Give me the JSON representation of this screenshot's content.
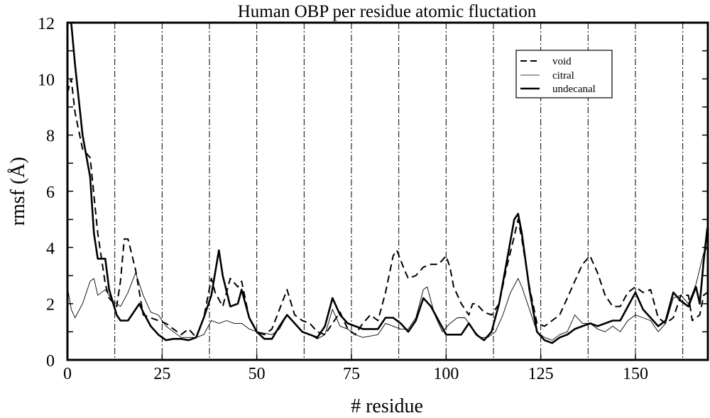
{
  "chart_data": {
    "type": "line",
    "title": "Human OBP per residue atomic fluctation",
    "xlabel": "# residue",
    "ylabel": "rmsf (Å)",
    "xlim": [
      0,
      169
    ],
    "ylim": [
      0,
      12
    ],
    "xticks": [
      "0",
      "25",
      "50",
      "75",
      "100",
      "125",
      "150"
    ],
    "yticks": [
      "0",
      "2",
      "4",
      "6",
      "8",
      "10",
      "12"
    ],
    "grid": "vertical dash-dot lines every 12.5 residues",
    "legend_position": "top-right",
    "series": [
      {
        "name": "void",
        "style": "dashed",
        "points": [
          [
            0,
            9.5
          ],
          [
            1,
            10.0
          ],
          [
            2,
            8.8
          ],
          [
            4,
            7.5
          ],
          [
            6,
            7.2
          ],
          [
            8,
            4.5
          ],
          [
            10,
            2.7
          ],
          [
            11,
            2.2
          ],
          [
            13,
            1.9
          ],
          [
            14,
            2.8
          ],
          [
            15,
            4.3
          ],
          [
            16,
            4.3
          ],
          [
            18,
            3.2
          ],
          [
            20,
            1.6
          ],
          [
            22,
            1.5
          ],
          [
            24,
            1.4
          ],
          [
            26,
            1.3
          ],
          [
            28,
            1.1
          ],
          [
            30,
            0.9
          ],
          [
            32,
            1.1
          ],
          [
            34,
            0.8
          ],
          [
            36,
            1.5
          ],
          [
            38,
            2.9
          ],
          [
            39,
            2.4
          ],
          [
            41,
            1.9
          ],
          [
            43,
            2.9
          ],
          [
            45,
            2.6
          ],
          [
            46,
            2.8
          ],
          [
            48,
            1.5
          ],
          [
            50,
            1.0
          ],
          [
            52,
            0.9
          ],
          [
            54,
            1.1
          ],
          [
            56,
            1.8
          ],
          [
            58,
            2.5
          ],
          [
            60,
            1.6
          ],
          [
            62,
            1.4
          ],
          [
            64,
            1.3
          ],
          [
            66,
            1.0
          ],
          [
            68,
            0.9
          ],
          [
            70,
            1.3
          ],
          [
            72,
            1.7
          ],
          [
            74,
            1.1
          ],
          [
            76,
            0.9
          ],
          [
            78,
            1.3
          ],
          [
            80,
            1.6
          ],
          [
            82,
            1.4
          ],
          [
            84,
            2.4
          ],
          [
            86,
            3.7
          ],
          [
            87,
            3.9
          ],
          [
            89,
            3.2
          ],
          [
            90,
            2.9
          ],
          [
            92,
            3.0
          ],
          [
            94,
            3.3
          ],
          [
            96,
            3.4
          ],
          [
            98,
            3.4
          ],
          [
            100,
            3.7
          ],
          [
            101,
            3.3
          ],
          [
            102,
            2.6
          ],
          [
            104,
            2.0
          ],
          [
            106,
            1.6
          ],
          [
            107,
            2.0
          ],
          [
            108,
            2.0
          ],
          [
            110,
            1.7
          ],
          [
            112,
            1.6
          ],
          [
            114,
            2.0
          ],
          [
            116,
            3.3
          ],
          [
            118,
            4.4
          ],
          [
            119,
            5.0
          ],
          [
            120,
            4.3
          ],
          [
            122,
            2.6
          ],
          [
            124,
            1.3
          ],
          [
            126,
            1.2
          ],
          [
            128,
            1.4
          ],
          [
            130,
            1.6
          ],
          [
            132,
            2.2
          ],
          [
            134,
            2.8
          ],
          [
            136,
            3.4
          ],
          [
            138,
            3.7
          ],
          [
            140,
            3.1
          ],
          [
            142,
            2.3
          ],
          [
            144,
            1.9
          ],
          [
            146,
            1.9
          ],
          [
            148,
            2.4
          ],
          [
            150,
            2.6
          ],
          [
            152,
            2.4
          ],
          [
            154,
            2.5
          ],
          [
            156,
            1.5
          ],
          [
            158,
            1.3
          ],
          [
            160,
            1.5
          ],
          [
            162,
            2.3
          ],
          [
            164,
            2.3
          ],
          [
            165,
            1.4
          ],
          [
            167,
            1.6
          ],
          [
            168,
            2.3
          ],
          [
            169,
            2.4
          ]
        ]
      },
      {
        "name": "citral",
        "style": "thin",
        "points": [
          [
            0,
            2.6
          ],
          [
            1,
            1.8
          ],
          [
            2,
            1.5
          ],
          [
            4,
            2.0
          ],
          [
            6,
            2.8
          ],
          [
            7,
            2.9
          ],
          [
            8,
            2.3
          ],
          [
            10,
            2.5
          ],
          [
            12,
            2.1
          ],
          [
            14,
            1.9
          ],
          [
            16,
            2.4
          ],
          [
            18,
            3.1
          ],
          [
            20,
            2.3
          ],
          [
            22,
            1.7
          ],
          [
            24,
            1.6
          ],
          [
            26,
            1.2
          ],
          [
            28,
            1.0
          ],
          [
            30,
            0.8
          ],
          [
            32,
            0.8
          ],
          [
            34,
            0.8
          ],
          [
            36,
            0.9
          ],
          [
            38,
            1.4
          ],
          [
            40,
            1.3
          ],
          [
            42,
            1.4
          ],
          [
            44,
            1.3
          ],
          [
            46,
            1.3
          ],
          [
            48,
            1.1
          ],
          [
            50,
            1.0
          ],
          [
            52,
            0.95
          ],
          [
            54,
            0.9
          ],
          [
            56,
            1.1
          ],
          [
            58,
            1.6
          ],
          [
            60,
            1.3
          ],
          [
            62,
            1.0
          ],
          [
            64,
            0.9
          ],
          [
            66,
            0.75
          ],
          [
            68,
            0.9
          ],
          [
            70,
            1.8
          ],
          [
            72,
            1.2
          ],
          [
            74,
            1.1
          ],
          [
            76,
            0.9
          ],
          [
            78,
            0.8
          ],
          [
            80,
            0.85
          ],
          [
            82,
            0.9
          ],
          [
            84,
            1.3
          ],
          [
            86,
            1.2
          ],
          [
            88,
            1.1
          ],
          [
            90,
            1.1
          ],
          [
            92,
            1.5
          ],
          [
            94,
            2.5
          ],
          [
            95,
            2.6
          ],
          [
            97,
            1.6
          ],
          [
            99,
            1.0
          ],
          [
            101,
            1.3
          ],
          [
            103,
            1.5
          ],
          [
            105,
            1.5
          ],
          [
            107,
            1.1
          ],
          [
            109,
            0.8
          ],
          [
            111,
            0.8
          ],
          [
            113,
            1.0
          ],
          [
            115,
            1.6
          ],
          [
            117,
            2.4
          ],
          [
            119,
            2.9
          ],
          [
            120,
            2.6
          ],
          [
            122,
            1.8
          ],
          [
            124,
            1.0
          ],
          [
            126,
            0.8
          ],
          [
            128,
            0.7
          ],
          [
            130,
            0.9
          ],
          [
            132,
            1.0
          ],
          [
            134,
            1.6
          ],
          [
            136,
            1.3
          ],
          [
            138,
            1.3
          ],
          [
            140,
            1.1
          ],
          [
            142,
            1.0
          ],
          [
            144,
            1.2
          ],
          [
            146,
            1.0
          ],
          [
            148,
            1.4
          ],
          [
            150,
            1.6
          ],
          [
            152,
            1.5
          ],
          [
            154,
            1.4
          ],
          [
            156,
            1.0
          ],
          [
            158,
            1.3
          ],
          [
            160,
            2.2
          ],
          [
            162,
            2.3
          ],
          [
            164,
            2.0
          ],
          [
            166,
            2.7
          ],
          [
            168,
            3.8
          ],
          [
            169,
            4.0
          ]
        ]
      },
      {
        "name": "undecanal",
        "style": "thick",
        "points": [
          [
            1,
            12
          ],
          [
            2,
            10.5
          ],
          [
            4,
            8
          ],
          [
            6,
            6.5
          ],
          [
            7,
            4.5
          ],
          [
            8,
            3.6
          ],
          [
            10,
            3.6
          ],
          [
            11,
            2.5
          ],
          [
            13,
            1.6
          ],
          [
            14,
            1.4
          ],
          [
            16,
            1.4
          ],
          [
            18,
            1.8
          ],
          [
            19,
            2.0
          ],
          [
            20,
            1.7
          ],
          [
            22,
            1.2
          ],
          [
            24,
            0.9
          ],
          [
            26,
            0.7
          ],
          [
            28,
            0.75
          ],
          [
            30,
            0.75
          ],
          [
            32,
            0.7
          ],
          [
            34,
            0.8
          ],
          [
            36,
            1.5
          ],
          [
            38,
            2.3
          ],
          [
            40,
            3.9
          ],
          [
            41,
            3.0
          ],
          [
            43,
            1.9
          ],
          [
            45,
            2.0
          ],
          [
            46,
            2.5
          ],
          [
            48,
            1.5
          ],
          [
            50,
            1.0
          ],
          [
            52,
            0.75
          ],
          [
            54,
            0.75
          ],
          [
            56,
            1.2
          ],
          [
            58,
            1.6
          ],
          [
            60,
            1.3
          ],
          [
            62,
            1.0
          ],
          [
            64,
            0.9
          ],
          [
            66,
            0.8
          ],
          [
            68,
            1.2
          ],
          [
            70,
            2.2
          ],
          [
            72,
            1.6
          ],
          [
            74,
            1.3
          ],
          [
            76,
            1.2
          ],
          [
            78,
            1.1
          ],
          [
            80,
            1.1
          ],
          [
            82,
            1.1
          ],
          [
            84,
            1.5
          ],
          [
            86,
            1.5
          ],
          [
            88,
            1.3
          ],
          [
            90,
            1.0
          ],
          [
            92,
            1.4
          ],
          [
            94,
            2.2
          ],
          [
            96,
            1.9
          ],
          [
            98,
            1.4
          ],
          [
            100,
            0.9
          ],
          [
            102,
            0.9
          ],
          [
            104,
            0.9
          ],
          [
            106,
            1.3
          ],
          [
            108,
            0.9
          ],
          [
            110,
            0.7
          ],
          [
            112,
            1.0
          ],
          [
            114,
            2.0
          ],
          [
            116,
            3.5
          ],
          [
            118,
            5.0
          ],
          [
            119,
            5.2
          ],
          [
            120,
            4.5
          ],
          [
            122,
            2.5
          ],
          [
            124,
            1.0
          ],
          [
            126,
            0.7
          ],
          [
            128,
            0.6
          ],
          [
            130,
            0.8
          ],
          [
            132,
            0.9
          ],
          [
            134,
            1.1
          ],
          [
            136,
            1.2
          ],
          [
            138,
            1.3
          ],
          [
            140,
            1.2
          ],
          [
            142,
            1.3
          ],
          [
            144,
            1.4
          ],
          [
            146,
            1.4
          ],
          [
            148,
            1.9
          ],
          [
            150,
            2.4
          ],
          [
            152,
            1.8
          ],
          [
            154,
            1.5
          ],
          [
            156,
            1.2
          ],
          [
            158,
            1.4
          ],
          [
            160,
            2.4
          ],
          [
            162,
            2.1
          ],
          [
            164,
            1.9
          ],
          [
            166,
            2.6
          ],
          [
            167,
            2.0
          ],
          [
            168,
            3.5
          ],
          [
            169,
            4.7
          ]
        ]
      }
    ]
  }
}
